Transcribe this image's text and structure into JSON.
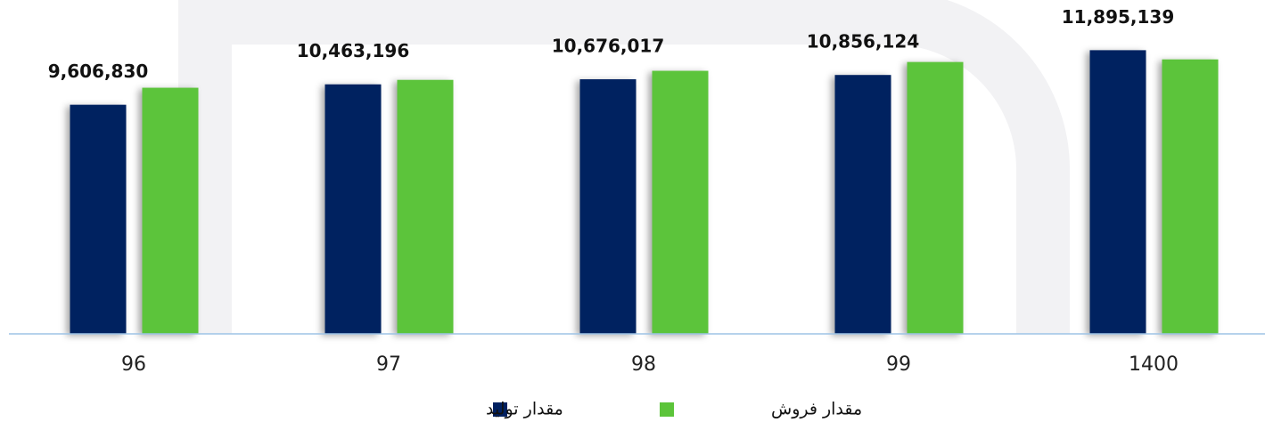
{
  "chart_data": {
    "type": "bar",
    "categories": [
      "96",
      "97",
      "98",
      "99",
      "1400"
    ],
    "series": [
      {
        "name": "مقدار تولید",
        "color": "#002060",
        "values": [
          9606830,
          10463196,
          10676017,
          10856124,
          11895139
        ],
        "value_labels": [
          "9,606,830",
          "10,463,196",
          "10,676,017",
          "10,856,124",
          "11,895,139"
        ]
      },
      {
        "name": "مقدار فروش",
        "color": "#5cc43a",
        "values": [
          10320000,
          10650000,
          11030000,
          11400000,
          11510000
        ]
      }
    ],
    "ylim": [
      0,
      14000000
    ]
  }
}
